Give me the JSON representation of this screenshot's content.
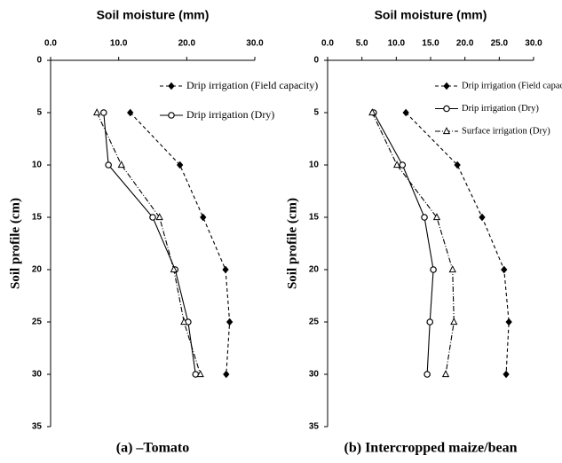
{
  "chart_data": [
    {
      "type": "line",
      "title": "Soil moisture (mm)",
      "y_label": "Soil profile (cm)",
      "caption": "(a) –Tomato",
      "x": [
        5,
        10,
        15,
        20,
        25,
        30
      ],
      "series": [
        {
          "name": "Drip irrigation (Field capacity)",
          "color": "#000000",
          "marker": "diamond",
          "dash": "dashed",
          "values": [
            11.7,
            19.0,
            22.4,
            25.7,
            26.3,
            25.8
          ]
        },
        {
          "name": "Drip irrigation (Dry)",
          "color": "#000000",
          "marker": "circle",
          "dash": "solid",
          "values": [
            7.8,
            8.5,
            15.0,
            18.3,
            20.2,
            21.3
          ]
        },
        {
          "color": "#000000",
          "marker": "triangle",
          "dash": "dashdot",
          "values": [
            6.8,
            10.4,
            16.0,
            18.1,
            19.6,
            22.0
          ]
        }
      ],
      "xlim": [
        0,
        30
      ],
      "xticks": [
        {
          "value": 0,
          "label": "0.0"
        },
        {
          "value": 10,
          "label": "10.0"
        },
        {
          "value": 20,
          "label": "20.0"
        },
        {
          "value": 30,
          "label": "30.0"
        }
      ],
      "ylim": [
        0,
        35
      ],
      "yticks": [
        0,
        5,
        10,
        15,
        20,
        25,
        30,
        35
      ],
      "y_reversed": true,
      "legend": "upper right",
      "grid": false
    },
    {
      "type": "line",
      "title": "Soil moisture (mm)",
      "y_label": "Soil profile (cm)",
      "caption": "(b)  Intercropped maize/bean",
      "x": [
        5,
        10,
        15,
        20,
        25,
        30
      ],
      "series": [
        {
          "name": "Drip irrigation (Field capacity)",
          "color": "#000000",
          "marker": "diamond",
          "dash": "dashed",
          "values": [
            11.4,
            18.9,
            22.5,
            25.7,
            26.4,
            26.0
          ]
        },
        {
          "name": "Drip irrigation (Dry)",
          "color": "#000000",
          "marker": "circle",
          "dash": "solid",
          "values": [
            6.7,
            10.9,
            14.1,
            15.4,
            14.9,
            14.5
          ]
        },
        {
          "name": "Surface irrigation (Dry)",
          "color": "#000000",
          "marker": "triangle",
          "dash": "dashdot",
          "values": [
            6.5,
            10.1,
            15.9,
            18.2,
            18.4,
            17.2
          ]
        }
      ],
      "xlim": [
        0,
        30
      ],
      "xticks": [
        {
          "value": 0,
          "label": "0.0"
        },
        {
          "value": 5,
          "label": "5.0"
        },
        {
          "value": 10,
          "label": "10.0"
        },
        {
          "value": 15,
          "label": "15.0"
        },
        {
          "value": 20,
          "label": "20.0"
        },
        {
          "value": 25,
          "label": "25.0"
        },
        {
          "value": 30,
          "label": "30.0"
        }
      ],
      "ylim": [
        0,
        35
      ],
      "yticks": [
        0,
        5,
        10,
        15,
        20,
        25,
        30,
        35
      ],
      "y_reversed": true,
      "legend": "upper right",
      "grid": false
    }
  ]
}
